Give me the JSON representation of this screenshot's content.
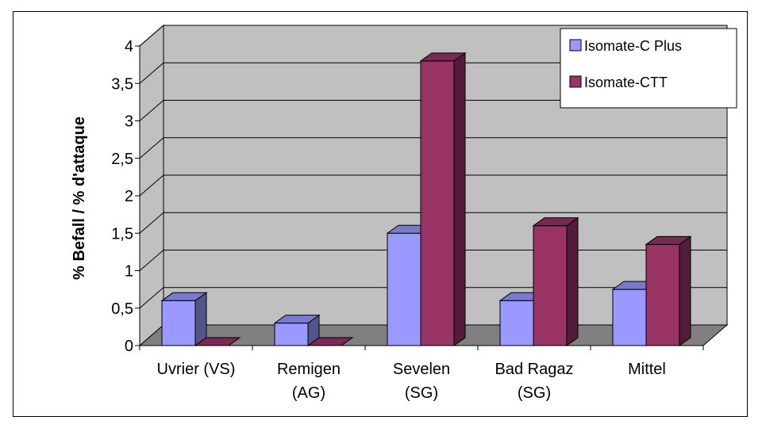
{
  "chart_data": {
    "type": "bar",
    "ylabel": "% Befall / % d'attaque",
    "categories": [
      [
        "Uvrier (VS)"
      ],
      [
        "Remigen",
        "(AG)"
      ],
      [
        "Sevelen",
        "(SG)"
      ],
      [
        "Bad Ragaz",
        "(SG)"
      ],
      [
        "Mittel"
      ]
    ],
    "series": [
      {
        "name": "Isomate-C Plus",
        "color": "#9999ff",
        "values": [
          0.6,
          0.3,
          1.5,
          0.6,
          0.75
        ]
      },
      {
        "name": "Isomate-CTT",
        "color": "#993366",
        "values": [
          0.0,
          0.0,
          3.8,
          1.6,
          1.35
        ]
      }
    ],
    "y_ticks": [
      "0",
      "0,5",
      "1",
      "1,5",
      "2",
      "2,5",
      "3",
      "3,5",
      "4"
    ],
    "ylim": [
      0,
      4
    ],
    "grid": true,
    "legend_position": "top-right",
    "three_d": true,
    "wall_color": "#c0c0c0",
    "floor_color": "#808080"
  }
}
